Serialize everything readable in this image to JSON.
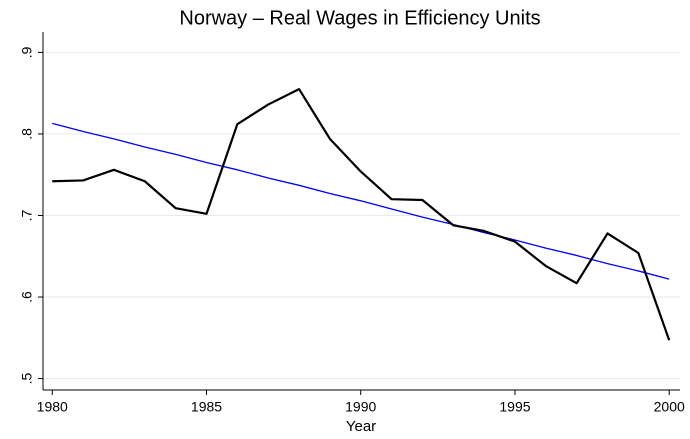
{
  "chart_data": {
    "type": "line",
    "title": "Norway – Real Wages in Efficiency Units",
    "x_label": "Year",
    "x": [
      1980,
      1981,
      1982,
      1983,
      1984,
      1985,
      1986,
      1987,
      1988,
      1989,
      1990,
      1991,
      1992,
      1993,
      1994,
      1995,
      1996,
      1997,
      1998,
      1999,
      2000
    ],
    "series": [
      {
        "color": "#000000",
        "values": [
          0.742,
          0.743,
          0.756,
          0.742,
          0.709,
          0.702,
          0.812,
          0.836,
          0.855,
          0.794,
          0.754,
          0.72,
          0.719,
          0.688,
          0.681,
          0.668,
          0.638,
          0.617,
          0.678,
          0.654,
          0.547
        ]
      },
      {
        "color": "#0000ff",
        "values": [
          0.813,
          0.803,
          0.794,
          0.784,
          0.775,
          0.765,
          0.756,
          0.746,
          0.737,
          0.727,
          0.718,
          0.708,
          0.698,
          0.689,
          0.679,
          0.67,
          0.66,
          0.651,
          0.641,
          0.632,
          0.622
        ]
      }
    ],
    "xlim": [
      1979.7,
      2000.35
    ],
    "ylim": [
      0.486,
      0.925
    ],
    "xticks": [
      1980,
      1985,
      1990,
      1995,
      2000
    ],
    "yticks": [
      {
        "value": 0.5,
        "label": ".5"
      },
      {
        "value": 0.6,
        "label": ".6"
      },
      {
        "value": 0.7,
        "label": ".7"
      },
      {
        "value": 0.8,
        "label": ".8"
      },
      {
        "value": 0.9,
        "label": ".9"
      }
    ],
    "grid": true
  }
}
